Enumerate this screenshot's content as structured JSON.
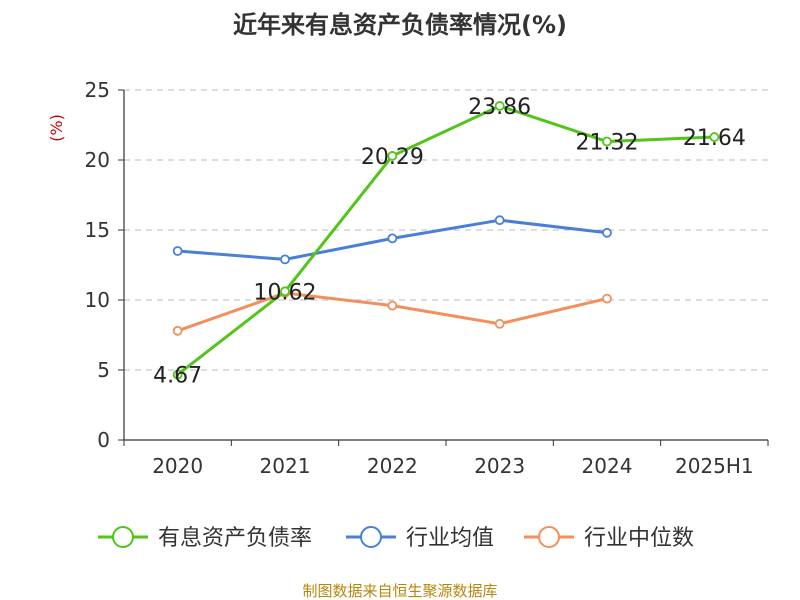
{
  "chart_data": {
    "type": "line",
    "title": "近年来有息资产负债率情况(%)",
    "ylabel": "(%)",
    "categories": [
      "2020",
      "2021",
      "2022",
      "2023",
      "2024",
      "2025H1"
    ],
    "ylim": [
      0,
      25
    ],
    "yticks": [
      "0",
      "5",
      "10",
      "15",
      "20",
      "25"
    ],
    "grid": true,
    "legend_position": "bottom",
    "series": [
      {
        "name": "有息资产负债率",
        "color": "#52c41a",
        "values": [
          4.67,
          10.62,
          20.29,
          23.86,
          21.32,
          21.64
        ],
        "labels": [
          "4.67",
          "10.62",
          "20.29",
          "23.86",
          "21.32",
          "21.64"
        ]
      },
      {
        "name": "行业均值",
        "color": "#4a7fd8",
        "values": [
          13.5,
          12.9,
          14.4,
          15.7,
          14.8,
          null
        ]
      },
      {
        "name": "行业中位数",
        "color": "#f28f5a",
        "values": [
          7.8,
          10.5,
          9.6,
          8.3,
          10.1,
          null
        ]
      }
    ],
    "source": "制图数据来自恒生聚源数据库"
  }
}
